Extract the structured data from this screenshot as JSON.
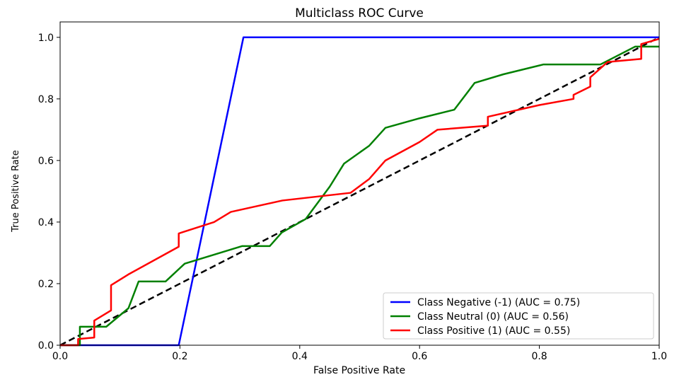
{
  "chart_data": {
    "type": "line",
    "title": "Multiclass ROC Curve",
    "xlabel": "False Positive Rate",
    "ylabel": "True Positive Rate",
    "xlim": [
      0.0,
      1.0
    ],
    "ylim": [
      0.0,
      1.05
    ],
    "xticks": [
      0.0,
      0.2,
      0.4,
      0.6,
      0.8,
      1.0
    ],
    "xtick_labels": [
      "0.0",
      "0.2",
      "0.4",
      "0.6",
      "0.8",
      "1.0"
    ],
    "yticks": [
      0.0,
      0.2,
      0.4,
      0.6,
      0.8,
      1.0
    ],
    "ytick_labels": [
      "0.0",
      "0.2",
      "0.4",
      "0.6",
      "0.8",
      "1.0"
    ],
    "grid": false,
    "legend_position": "bottom-right",
    "series": [
      {
        "name": "Class Negative (-1) (AUC = 0.75)",
        "color": "#0000ff",
        "points": [
          [
            0.0,
            0.0
          ],
          [
            0.198,
            0.0
          ],
          [
            0.306,
            1.0
          ],
          [
            1.0,
            1.0
          ]
        ]
      },
      {
        "name": "Class Neutral (0) (AUC = 0.56)",
        "color": "#008000",
        "points": [
          [
            0.0,
            0.0
          ],
          [
            0.033,
            0.0
          ],
          [
            0.033,
            0.06
          ],
          [
            0.077,
            0.06
          ],
          [
            0.114,
            0.12
          ],
          [
            0.131,
            0.207
          ],
          [
            0.176,
            0.207
          ],
          [
            0.208,
            0.265
          ],
          [
            0.25,
            0.29
          ],
          [
            0.304,
            0.322
          ],
          [
            0.35,
            0.322
          ],
          [
            0.37,
            0.366
          ],
          [
            0.41,
            0.41
          ],
          [
            0.45,
            0.515
          ],
          [
            0.474,
            0.59
          ],
          [
            0.516,
            0.648
          ],
          [
            0.543,
            0.706
          ],
          [
            0.6,
            0.737
          ],
          [
            0.658,
            0.765
          ],
          [
            0.692,
            0.852
          ],
          [
            0.74,
            0.88
          ],
          [
            0.807,
            0.912
          ],
          [
            0.902,
            0.912
          ],
          [
            0.96,
            0.97
          ],
          [
            1.0,
            0.97
          ]
        ]
      },
      {
        "name": "Class Positive (1) (AUC = 0.55)",
        "color": "#ff0000",
        "points": [
          [
            0.0,
            0.0
          ],
          [
            0.03,
            0.0
          ],
          [
            0.03,
            0.02
          ],
          [
            0.057,
            0.025
          ],
          [
            0.057,
            0.08
          ],
          [
            0.085,
            0.113
          ],
          [
            0.085,
            0.195
          ],
          [
            0.114,
            0.23
          ],
          [
            0.198,
            0.32
          ],
          [
            0.198,
            0.363
          ],
          [
            0.257,
            0.4
          ],
          [
            0.285,
            0.433
          ],
          [
            0.371,
            0.47
          ],
          [
            0.485,
            0.495
          ],
          [
            0.516,
            0.54
          ],
          [
            0.543,
            0.6
          ],
          [
            0.6,
            0.66
          ],
          [
            0.63,
            0.7
          ],
          [
            0.714,
            0.713
          ],
          [
            0.714,
            0.742
          ],
          [
            0.8,
            0.78
          ],
          [
            0.857,
            0.8
          ],
          [
            0.857,
            0.813
          ],
          [
            0.885,
            0.84
          ],
          [
            0.885,
            0.87
          ],
          [
            0.914,
            0.92
          ],
          [
            0.97,
            0.93
          ],
          [
            0.97,
            0.978
          ],
          [
            1.0,
            0.995
          ]
        ]
      }
    ],
    "reference_line": {
      "style": "dashed",
      "color": "#000000",
      "points": [
        [
          0.0,
          0.0
        ],
        [
          1.0,
          1.0
        ]
      ]
    }
  }
}
